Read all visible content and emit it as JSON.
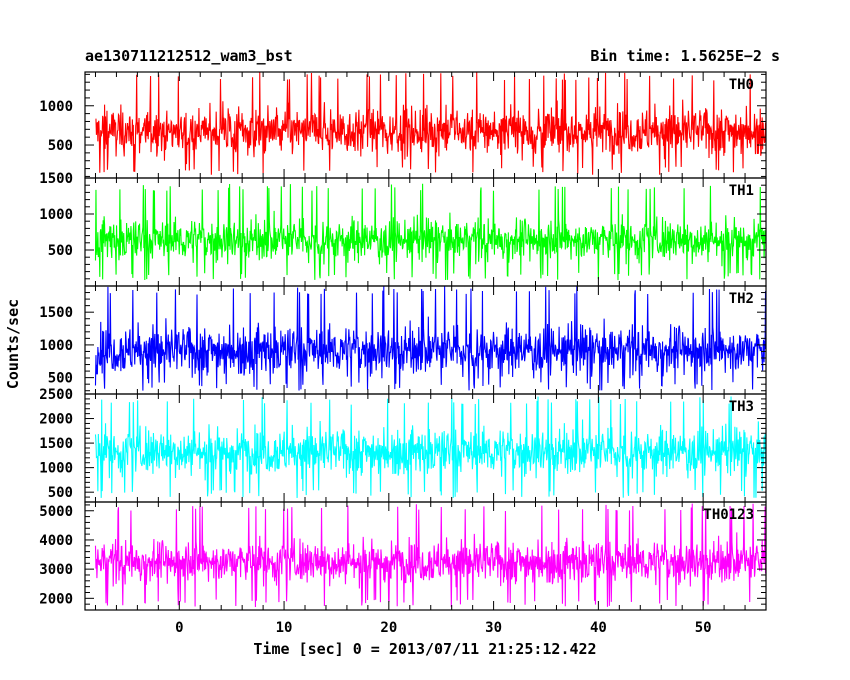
{
  "chart_data": {
    "type": "line",
    "title_left": "ae130711212512_wam3_bst",
    "title_right": "Bin time: 1.5625E−2 s",
    "xlabel": "Time [sec] 0 = 2013/07/11 21:25:12.422",
    "ylabel": "Counts/sec",
    "xlim": [
      -9,
      56
    ],
    "x_ticks": [
      0,
      10,
      20,
      30,
      40,
      50
    ],
    "x_tick_labels": [
      "0",
      "10",
      "20",
      "30",
      "40",
      "50"
    ],
    "x_data_range": [
      -8,
      56
    ],
    "bin_time_s": 0.015625,
    "panels": [
      {
        "name": "TH0",
        "color": "#ff0000",
        "ylim": [
          80,
          1430
        ],
        "y_ticks": [
          500,
          1000
        ],
        "y_tick_labels": [
          "500",
          "1000"
        ],
        "mean": 680,
        "spread": 270,
        "min": 120,
        "max": 1430
      },
      {
        "name": "TH1",
        "color": "#00ff00",
        "ylim": [
          0,
          1500
        ],
        "y_ticks": [
          500,
          1000,
          1500
        ],
        "y_tick_labels": [
          "500",
          "1000",
          "1500"
        ],
        "mean": 640,
        "spread": 260,
        "min": 80,
        "max": 1420
      },
      {
        "name": "TH2",
        "color": "#0000ff",
        "ylim": [
          250,
          1900
        ],
        "y_ticks": [
          500,
          1000,
          1500
        ],
        "y_tick_labels": [
          "500",
          "1000",
          "1500"
        ],
        "mean": 920,
        "spread": 330,
        "min": 300,
        "max": 1900
      },
      {
        "name": "TH3",
        "color": "#00ffff",
        "ylim": [
          300,
          2500
        ],
        "y_ticks": [
          500,
          1000,
          1500,
          2000,
          2500
        ],
        "y_tick_labels": [
          "500",
          "1000",
          "1500",
          "2000",
          "2500"
        ],
        "mean": 1330,
        "spread": 420,
        "min": 380,
        "max": 2450
      },
      {
        "name": "TH0123",
        "color": "#ff00ff",
        "ylim": [
          1600,
          5300
        ],
        "y_ticks": [
          2000,
          3000,
          4000,
          5000
        ],
        "y_tick_labels": [
          "2000",
          "3000",
          "4000",
          "5000"
        ],
        "mean": 3250,
        "spread": 650,
        "min": 1700,
        "max": 5250
      }
    ]
  }
}
